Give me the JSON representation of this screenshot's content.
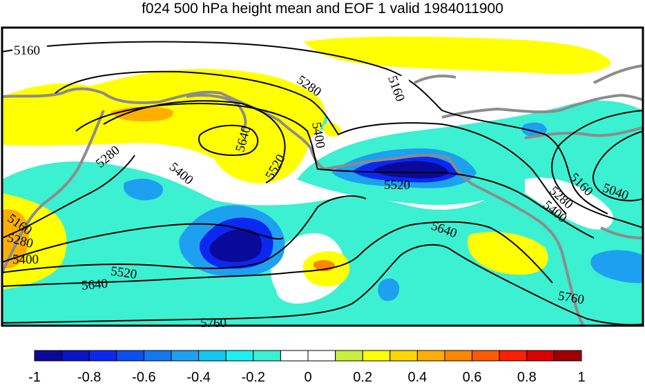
{
  "title": "f024 500 hPa height mean and EOF 1 valid 1984011900",
  "colorbar": {
    "ticks": [
      "-1",
      "-0.8",
      "-0.6",
      "-0.4",
      "-0.2",
      "0",
      "0.2",
      "0.4",
      "0.6",
      "0.8",
      "1"
    ],
    "colors": [
      "#0a0a9a",
      "#0a14c8",
      "#0a28f0",
      "#0a50f0",
      "#1478f0",
      "#1ea0f0",
      "#14c8f0",
      "#1ef0f0",
      "#3cf0d2",
      "#ffffff",
      "#ffffff",
      "#c8f03c",
      "#ffff00",
      "#ffd700",
      "#ffaf00",
      "#ff8700",
      "#ff5a00",
      "#ff1e00",
      "#dc0000",
      "#a00000"
    ]
  },
  "contour_labels": [
    "5160",
    "5160",
    "5280",
    "5640",
    "5400",
    "5520",
    "5280",
    "5400",
    "5520",
    "5040",
    "5160",
    "5280",
    "5400",
    "5160",
    "5280",
    "5400",
    "5520",
    "5640",
    "5640",
    "5760",
    "5760"
  ],
  "colors": {
    "coast": "#8c8c8c",
    "contour": "#000000",
    "positive": "#ffff00",
    "negative_weak": "#3cf0d2",
    "negative_strong": "#0a14c8"
  }
}
